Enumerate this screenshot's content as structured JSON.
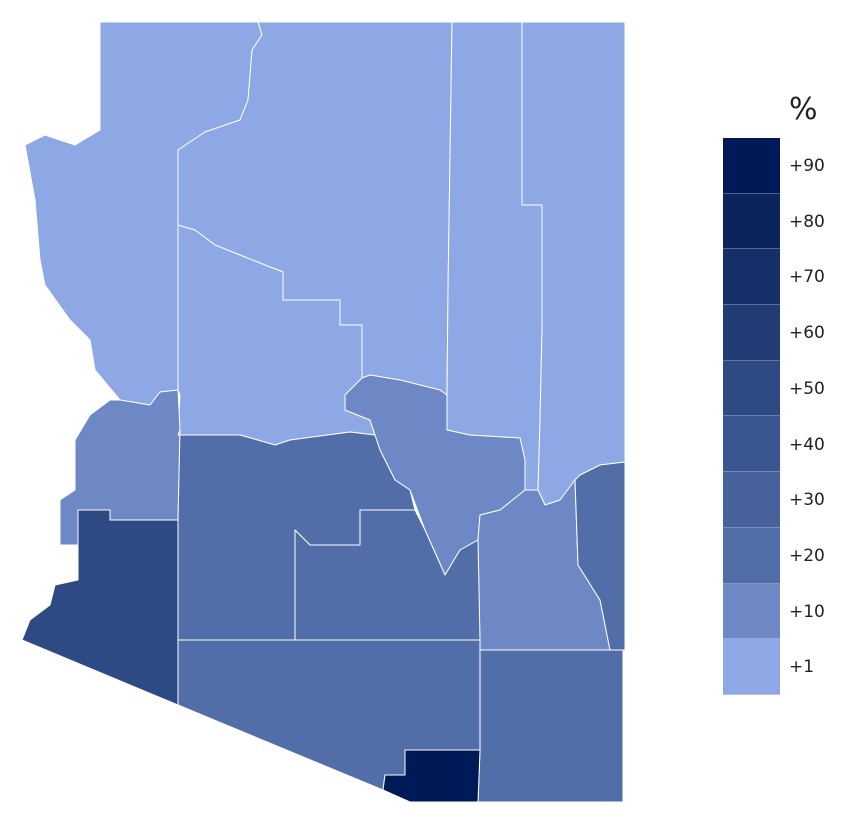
{
  "legend": {
    "title": "%",
    "items": [
      {
        "label": "+90",
        "color": "#001a57"
      },
      {
        "label": "+80",
        "color": "#0b245c"
      },
      {
        "label": "+70",
        "color": "#162f69"
      },
      {
        "label": "+60",
        "color": "#223c76"
      },
      {
        "label": "+50",
        "color": "#2e4a84"
      },
      {
        "label": "+40",
        "color": "#3a5690"
      },
      {
        "label": "+30",
        "color": "#46619c"
      },
      {
        "label": "+20",
        "color": "#526ea8"
      },
      {
        "label": "+10",
        "color": "#6d88c4"
      },
      {
        "label": "+1",
        "color": "#8da8e4"
      }
    ]
  },
  "regions": [
    {
      "level": "+1"
    },
    {
      "level": "+1"
    },
    {
      "level": "+1"
    },
    {
      "level": "+1"
    },
    {
      "level": "+1"
    },
    {
      "level": "+10"
    },
    {
      "level": "+10"
    },
    {
      "level": "+10"
    },
    {
      "level": "+20"
    },
    {
      "level": "+20"
    },
    {
      "level": "+20"
    },
    {
      "level": "+20"
    },
    {
      "level": "+20"
    },
    {
      "level": "+50"
    },
    {
      "level": "+90"
    }
  ]
}
